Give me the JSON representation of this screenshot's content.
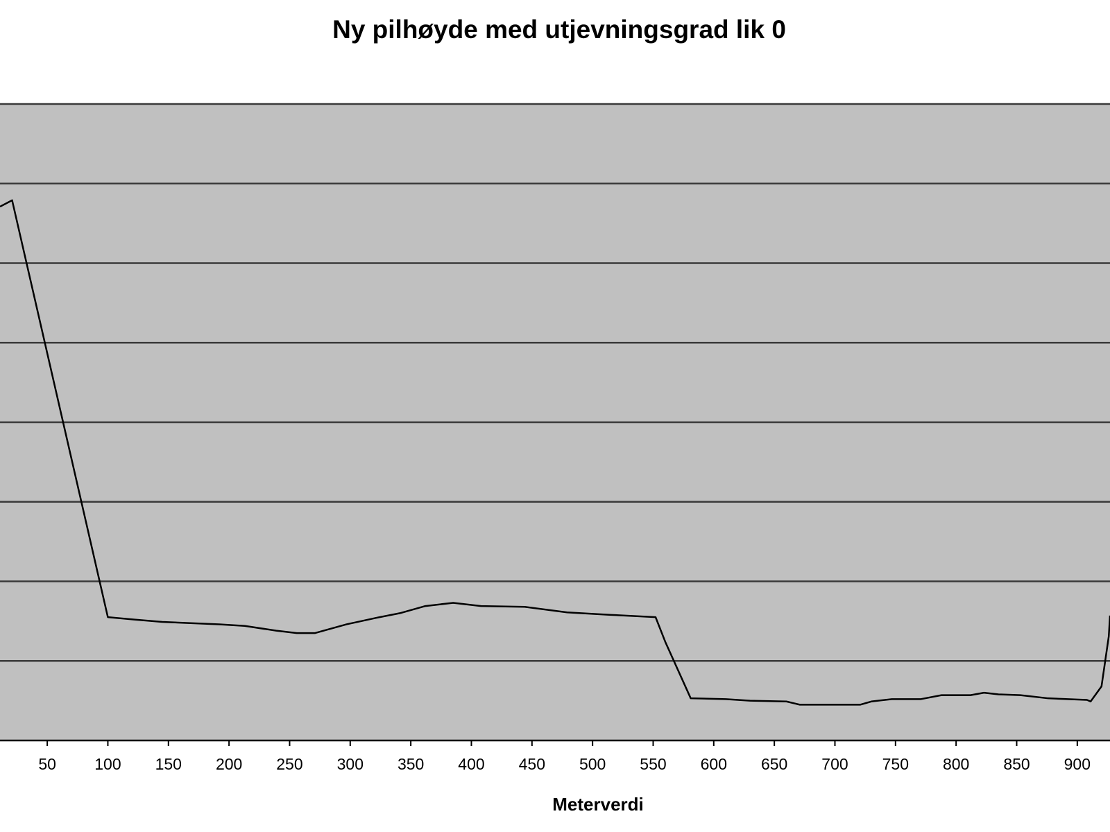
{
  "chart_data": {
    "type": "line",
    "title": "Ny pilhøyde med utjevningsgrad lik 0",
    "x_label": "Meterverdi",
    "x": [
      11,
      21,
      100,
      122,
      145,
      192,
      213,
      239,
      256,
      271,
      297,
      321,
      341,
      362,
      385,
      408,
      444,
      479,
      514,
      552,
      560,
      581,
      610,
      630,
      660,
      671,
      721,
      730,
      747,
      771,
      788,
      812,
      823,
      835,
      853,
      876,
      908,
      911,
      920,
      926,
      927
    ],
    "series": [
      {
        "name": "Pilhøyde",
        "color": "#000000",
        "values": [
          6.71,
          6.79,
          1.55,
          1.52,
          1.49,
          1.46,
          1.44,
          1.38,
          1.35,
          1.35,
          1.46,
          1.54,
          1.6,
          1.69,
          1.73,
          1.69,
          1.68,
          1.61,
          1.58,
          1.55,
          1.24,
          0.53,
          0.52,
          0.5,
          0.49,
          0.45,
          0.45,
          0.49,
          0.52,
          0.52,
          0.57,
          0.57,
          0.6,
          0.58,
          0.57,
          0.53,
          0.51,
          0.49,
          0.68,
          1.31,
          1.57
        ]
      }
    ],
    "xlim": [
      11,
      927
    ],
    "xticks": [
      50,
      100,
      150,
      200,
      250,
      300,
      350,
      400,
      450,
      500,
      550,
      600,
      650,
      700,
      750,
      800,
      850,
      900
    ],
    "ylim": [
      0,
      8
    ],
    "yticks": [
      1,
      2,
      3,
      4,
      5,
      6,
      7,
      8
    ],
    "grid": true,
    "plot_background": "#c0c0c0"
  }
}
